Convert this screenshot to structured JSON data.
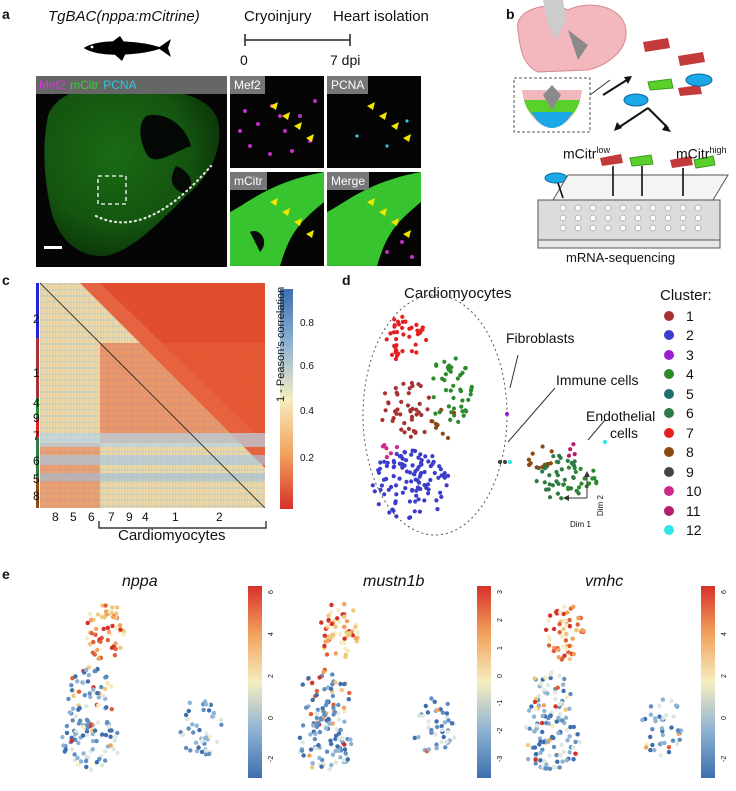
{
  "panel_a": {
    "label": "a",
    "line_title": "TgBAC(nppa:mCitrine)",
    "timeline": {
      "event1": "Cryoinjury",
      "event2": "Heart isolation",
      "t0": "0",
      "t1": "7 dpi"
    },
    "main_tags": [
      "Mef2",
      "mCitr",
      "PCNA"
    ],
    "tile_tags": [
      "Mef2",
      "PCNA",
      "mCitr",
      "Merge"
    ],
    "colors": {
      "mef2": "#d23ad6",
      "mcitr": "#37d12e",
      "pcna": "#2ec5e6",
      "arrow": "#f2e600"
    }
  },
  "panel_b": {
    "label": "b",
    "low": {
      "text": "mCitr",
      "sup": "low"
    },
    "high": {
      "text": "mCitr",
      "sup": "high"
    },
    "seq": "mRNA-sequencing"
  },
  "panel_c": {
    "label": "c",
    "colorbar_title": "1 - Peason's correlation",
    "colorbar_ticks": [
      "0.8",
      "0.6",
      "0.4",
      "0.2"
    ],
    "row_labels": [
      "2",
      "1",
      "4",
      "9",
      "7",
      "6",
      "5",
      "8"
    ],
    "col_labels": [
      "8",
      "5",
      "6",
      "7",
      "9",
      "4",
      "1",
      "2"
    ],
    "bracket_label": "Cardiomyocytes"
  },
  "panel_d": {
    "label": "d",
    "annotations": {
      "cardio": "Cardiomyocytes",
      "fibro": "Fibroblasts",
      "immune": "Immune cells",
      "endo1": "Endothelial",
      "endo2": "cells"
    },
    "legend_title": "Cluster:",
    "clusters": [
      {
        "id": "1",
        "color": "#a83232"
      },
      {
        "id": "2",
        "color": "#3b3bcc"
      },
      {
        "id": "3",
        "color": "#9a1fd0"
      },
      {
        "id": "4",
        "color": "#2b8a2b"
      },
      {
        "id": "5",
        "color": "#1f6f6f"
      },
      {
        "id": "6",
        "color": "#2e7a45"
      },
      {
        "id": "7",
        "color": "#e52020"
      },
      {
        "id": "8",
        "color": "#8a4a12"
      },
      {
        "id": "9",
        "color": "#444444"
      },
      {
        "id": "10",
        "color": "#cc2a8a"
      },
      {
        "id": "11",
        "color": "#b51e6e"
      },
      {
        "id": "12",
        "color": "#2fe6e6"
      }
    ],
    "axes": {
      "x": "Dim 1",
      "y": "Dim 2"
    }
  },
  "panel_e": {
    "label": "e",
    "genes": [
      {
        "name": "nppa",
        "ticks": [
          "6",
          "4",
          "2",
          "0",
          "-2"
        ]
      },
      {
        "name": "mustn1b",
        "ticks": [
          "3",
          "2",
          "1",
          "0",
          "-1",
          "-2",
          "-3"
        ]
      },
      {
        "name": "vmhc",
        "ticks": [
          "6",
          "4",
          "2",
          "0",
          "-2"
        ]
      }
    ]
  }
}
